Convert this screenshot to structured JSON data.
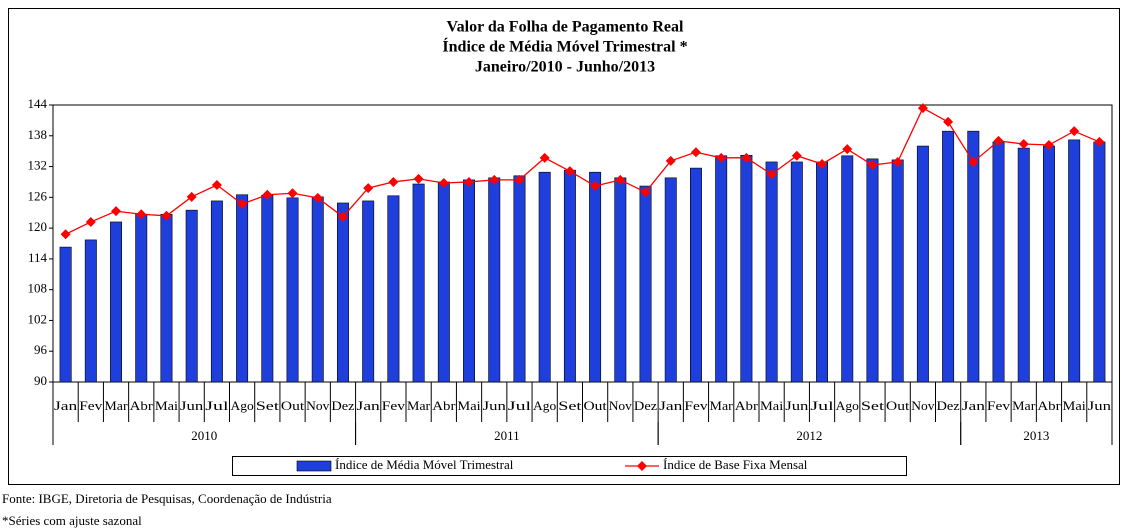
{
  "chart_data": {
    "type": "bar_line",
    "title": "Valor da Folha de Pagamento Real",
    "subtitle": "Índice de Média Móvel Trimestral *",
    "period": "Janeiro/2010 - Junho/2013",
    "categories": [
      "Jan",
      "Fev",
      "Mar",
      "Abr",
      "Mai",
      "Jun",
      "Jul",
      "Ago",
      "Set",
      "Out",
      "Nov",
      "Dez",
      "Jan",
      "Fev",
      "Mar",
      "Abr",
      "Mai",
      "Jun",
      "Jul",
      "Ago",
      "Set",
      "Out",
      "Nov",
      "Dez",
      "Jan",
      "Fev",
      "Mar",
      "Abr",
      "Mai",
      "Jun",
      "Jul",
      "Ago",
      "Set",
      "Out",
      "Nov",
      "Dez",
      "Jan",
      "Fev",
      "Mar",
      "Abr",
      "Mai",
      "Jun"
    ],
    "years": [
      "2010",
      "2011",
      "2012",
      "2013"
    ],
    "series": [
      {
        "name": "Índice de Média Móvel Trimestral",
        "type": "bar",
        "color": "#1f3fdc",
        "values": [
          116.3,
          117.7,
          121.2,
          122.7,
          122.7,
          123.5,
          125.3,
          126.5,
          126.4,
          125.9,
          126.1,
          124.9,
          125.3,
          126.3,
          128.6,
          129,
          129.4,
          129.8,
          130.2,
          130.9,
          131.3,
          130.9,
          129.8,
          128.2,
          129.8,
          131.7,
          134.1,
          134.2,
          132.9,
          132.9,
          132.9,
          134.1,
          133.5,
          133.3,
          136,
          138.9,
          138.9,
          136.8,
          135.6,
          136,
          137.2,
          136.8
        ]
      },
      {
        "name": "Índice de Base Fixa Mensal",
        "type": "line",
        "color": "#ff0000",
        "values": [
          118.8,
          121.2,
          123.3,
          122.7,
          122.4,
          126.1,
          128.4,
          124.7,
          126.5,
          126.8,
          125.9,
          122.2,
          127.8,
          129,
          129.6,
          128.8,
          129,
          129.4,
          129.4,
          133.7,
          131.1,
          128.2,
          129.4,
          127,
          133.1,
          134.8,
          133.7,
          133.7,
          130.5,
          134.1,
          132.5,
          135.4,
          132.3,
          132.9,
          143.4,
          140.7,
          132.9,
          137,
          136.4,
          136.2,
          138.9,
          136.8
        ]
      }
    ],
    "ylim": [
      90,
      144
    ],
    "yticks": [
      90,
      96,
      102,
      108,
      114,
      120,
      126,
      132,
      138,
      144
    ],
    "notes": [
      "Fonte: IBGE, Diretoria de Pesquisas, Coordenação de Indústria",
      "*Séries com ajuste sazonal"
    ]
  }
}
